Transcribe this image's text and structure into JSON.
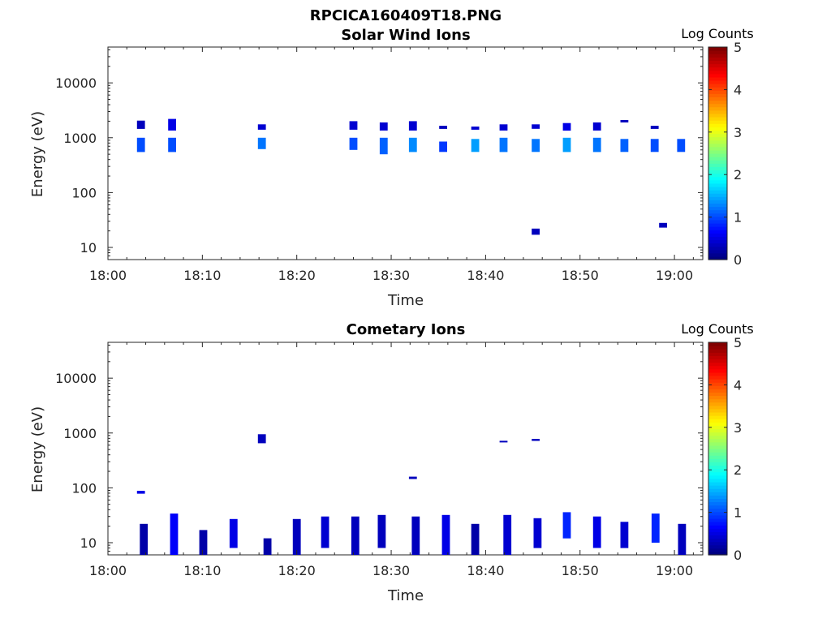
{
  "figure": {
    "filename_title": "RPCICA160409T18.PNG"
  },
  "colorbar": {
    "label": "Log Counts",
    "ticks": [
      "0",
      "1",
      "2",
      "3",
      "4",
      "5"
    ],
    "range": [
      0,
      5
    ],
    "colormap": "jet"
  },
  "chart_data": [
    {
      "type": "heatmap",
      "title": "Solar Wind Ions",
      "xlabel": "Time",
      "ylabel": "Energy (eV)",
      "x_ticks": [
        "18:00",
        "18:10",
        "18:20",
        "18:30",
        "18:40",
        "18:50",
        "19:00"
      ],
      "x_tick_minutes": [
        0,
        10,
        20,
        30,
        40,
        50,
        60
      ],
      "xlim_minutes": [
        0,
        63
      ],
      "y_scale": "log",
      "y_ticks": [
        "10",
        "100",
        "1000",
        "10000"
      ],
      "ylim": [
        6,
        45000
      ],
      "cells": [
        {
          "t": 3.5,
          "e_lo": 550,
          "e_hi": 1000,
          "v": 1.0
        },
        {
          "t": 3.5,
          "e_lo": 1450,
          "e_hi": 2050,
          "v": 0.3
        },
        {
          "t": 6.8,
          "e_lo": 550,
          "e_hi": 1000,
          "v": 1.0
        },
        {
          "t": 6.8,
          "e_lo": 1350,
          "e_hi": 2200,
          "v": 0.5
        },
        {
          "t": 16.3,
          "e_lo": 620,
          "e_hi": 1000,
          "v": 1.2
        },
        {
          "t": 16.3,
          "e_lo": 1400,
          "e_hi": 1750,
          "v": 0.4
        },
        {
          "t": 26.0,
          "e_lo": 600,
          "e_hi": 1000,
          "v": 1.0
        },
        {
          "t": 26.0,
          "e_lo": 1400,
          "e_hi": 2000,
          "v": 0.4
        },
        {
          "t": 29.2,
          "e_lo": 500,
          "e_hi": 1000,
          "v": 1.1
        },
        {
          "t": 29.2,
          "e_lo": 1350,
          "e_hi": 1900,
          "v": 0.4
        },
        {
          "t": 32.3,
          "e_lo": 550,
          "e_hi": 1000,
          "v": 1.3
        },
        {
          "t": 32.3,
          "e_lo": 1350,
          "e_hi": 2000,
          "v": 0.4
        },
        {
          "t": 35.5,
          "e_lo": 550,
          "e_hi": 850,
          "v": 0.9
        },
        {
          "t": 35.5,
          "e_lo": 1450,
          "e_hi": 1650,
          "v": 0.3
        },
        {
          "t": 38.9,
          "e_lo": 550,
          "e_hi": 950,
          "v": 1.4
        },
        {
          "t": 38.9,
          "e_lo": 1400,
          "e_hi": 1600,
          "v": 0.4
        },
        {
          "t": 41.9,
          "e_lo": 550,
          "e_hi": 1000,
          "v": 1.2
        },
        {
          "t": 41.9,
          "e_lo": 1350,
          "e_hi": 1750,
          "v": 0.4
        },
        {
          "t": 45.3,
          "e_lo": 550,
          "e_hi": 950,
          "v": 1.2
        },
        {
          "t": 45.3,
          "e_lo": 1450,
          "e_hi": 1750,
          "v": 0.4
        },
        {
          "t": 48.6,
          "e_lo": 550,
          "e_hi": 1000,
          "v": 1.4
        },
        {
          "t": 48.6,
          "e_lo": 1350,
          "e_hi": 1850,
          "v": 0.5
        },
        {
          "t": 51.8,
          "e_lo": 550,
          "e_hi": 1000,
          "v": 1.2
        },
        {
          "t": 51.8,
          "e_lo": 1350,
          "e_hi": 1900,
          "v": 0.4
        },
        {
          "t": 54.7,
          "e_lo": 550,
          "e_hi": 950,
          "v": 1.1
        },
        {
          "t": 54.7,
          "e_lo": 1900,
          "e_hi": 2100,
          "v": 0.3
        },
        {
          "t": 57.9,
          "e_lo": 550,
          "e_hi": 950,
          "v": 1.0
        },
        {
          "t": 57.9,
          "e_lo": 1450,
          "e_hi": 1650,
          "v": 0.3
        },
        {
          "t": 60.7,
          "e_lo": 550,
          "e_hi": 950,
          "v": 1.0
        },
        {
          "t": 45.3,
          "e_lo": 17,
          "e_hi": 22,
          "v": 0.3
        },
        {
          "t": 58.8,
          "e_lo": 23,
          "e_hi": 28,
          "v": 0.3
        }
      ]
    },
    {
      "type": "heatmap",
      "title": "Cometary Ions",
      "xlabel": "Time",
      "ylabel": "Energy (eV)",
      "x_ticks": [
        "18:00",
        "18:10",
        "18:20",
        "18:30",
        "18:40",
        "18:50",
        "19:00"
      ],
      "x_tick_minutes": [
        0,
        10,
        20,
        30,
        40,
        50,
        60
      ],
      "xlim_minutes": [
        0,
        63
      ],
      "y_scale": "log",
      "y_ticks": [
        "10",
        "100",
        "1000",
        "10000"
      ],
      "ylim": [
        6,
        45000
      ],
      "cells": [
        {
          "t": 3.5,
          "e_lo": 78,
          "e_hi": 88,
          "v": 0.5
        },
        {
          "t": 3.8,
          "e_lo": 6,
          "e_hi": 22,
          "v": 0.2
        },
        {
          "t": 7.0,
          "e_lo": 6,
          "e_hi": 34,
          "v": 0.6
        },
        {
          "t": 10.1,
          "e_lo": 6,
          "e_hi": 17,
          "v": 0.2
        },
        {
          "t": 13.3,
          "e_lo": 8,
          "e_hi": 27,
          "v": 0.5
        },
        {
          "t": 16.3,
          "e_lo": 650,
          "e_hi": 950,
          "v": 0.3
        },
        {
          "t": 16.9,
          "e_lo": 6,
          "e_hi": 12,
          "v": 0.2
        },
        {
          "t": 20.0,
          "e_lo": 6,
          "e_hi": 27,
          "v": 0.3
        },
        {
          "t": 23.0,
          "e_lo": 8,
          "e_hi": 30,
          "v": 0.4
        },
        {
          "t": 26.2,
          "e_lo": 6,
          "e_hi": 30,
          "v": 0.3
        },
        {
          "t": 29.0,
          "e_lo": 8,
          "e_hi": 32,
          "v": 0.3
        },
        {
          "t": 32.3,
          "e_lo": 145,
          "e_hi": 160,
          "v": 0.3
        },
        {
          "t": 32.6,
          "e_lo": 6,
          "e_hi": 30,
          "v": 0.3
        },
        {
          "t": 35.8,
          "e_lo": 6,
          "e_hi": 32,
          "v": 0.5
        },
        {
          "t": 38.9,
          "e_lo": 6,
          "e_hi": 22,
          "v": 0.2
        },
        {
          "t": 41.9,
          "e_lo": 680,
          "e_hi": 720,
          "v": 0.3
        },
        {
          "t": 42.3,
          "e_lo": 6,
          "e_hi": 32,
          "v": 0.4
        },
        {
          "t": 45.3,
          "e_lo": 720,
          "e_hi": 780,
          "v": 0.3
        },
        {
          "t": 45.5,
          "e_lo": 8,
          "e_hi": 28,
          "v": 0.4
        },
        {
          "t": 48.6,
          "e_lo": 12,
          "e_hi": 36,
          "v": 0.8
        },
        {
          "t": 51.8,
          "e_lo": 8,
          "e_hi": 30,
          "v": 0.5
        },
        {
          "t": 54.7,
          "e_lo": 8,
          "e_hi": 24,
          "v": 0.4
        },
        {
          "t": 58.0,
          "e_lo": 10,
          "e_hi": 34,
          "v": 0.8
        },
        {
          "t": 60.8,
          "e_lo": 6,
          "e_hi": 22,
          "v": 0.3
        }
      ]
    }
  ]
}
